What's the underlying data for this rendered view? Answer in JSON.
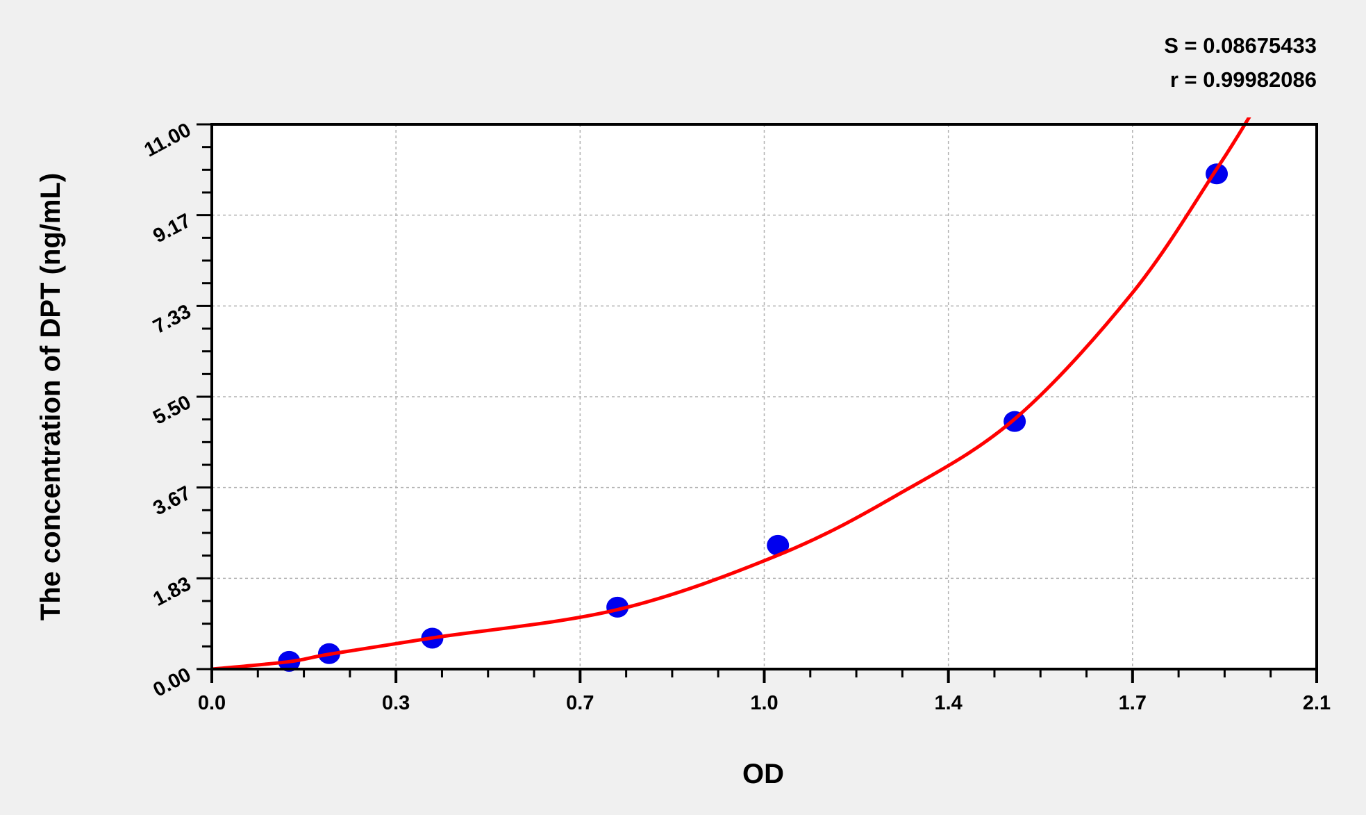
{
  "chart_data": {
    "type": "scatter",
    "xlabel": "OD",
    "ylabel": "The concentration of DPT (ng/mL)",
    "xlim": [
      0,
      2.1
    ],
    "ylim": [
      0,
      11
    ],
    "x_ticks": [
      "0.0",
      "0.3",
      "0.7",
      "1.0",
      "1.4",
      "1.7",
      "2.1"
    ],
    "y_ticks": [
      "0.00",
      "1.83",
      "3.67",
      "5.50",
      "7.33",
      "9.17",
      "11.00"
    ],
    "grid": true,
    "stats": [
      "S = 0.08675433",
      "r = 0.99982086"
    ],
    "points": [
      {
        "x": 0.147,
        "y": 0.156
      },
      {
        "x": 0.223,
        "y": 0.312
      },
      {
        "x": 0.419,
        "y": 0.625
      },
      {
        "x": 0.771,
        "y": 1.25
      },
      {
        "x": 1.076,
        "y": 2.5
      },
      {
        "x": 1.526,
        "y": 5.0
      },
      {
        "x": 1.91,
        "y": 10.0
      }
    ],
    "fit_curve": [
      [
        0,
        0
      ],
      [
        0.147,
        0.15
      ],
      [
        0.223,
        0.3
      ],
      [
        0.419,
        0.63
      ],
      [
        0.771,
        1.2
      ],
      [
        1.076,
        2.3
      ],
      [
        1.3,
        3.5
      ],
      [
        1.526,
        5.05
      ],
      [
        1.75,
        7.6
      ],
      [
        1.91,
        10.1
      ],
      [
        1.975,
        11.2
      ]
    ],
    "colors": {
      "points": "#0000ee",
      "curve": "#ff0000",
      "background": "#f0f0f0",
      "plot": "#ffffff"
    }
  }
}
